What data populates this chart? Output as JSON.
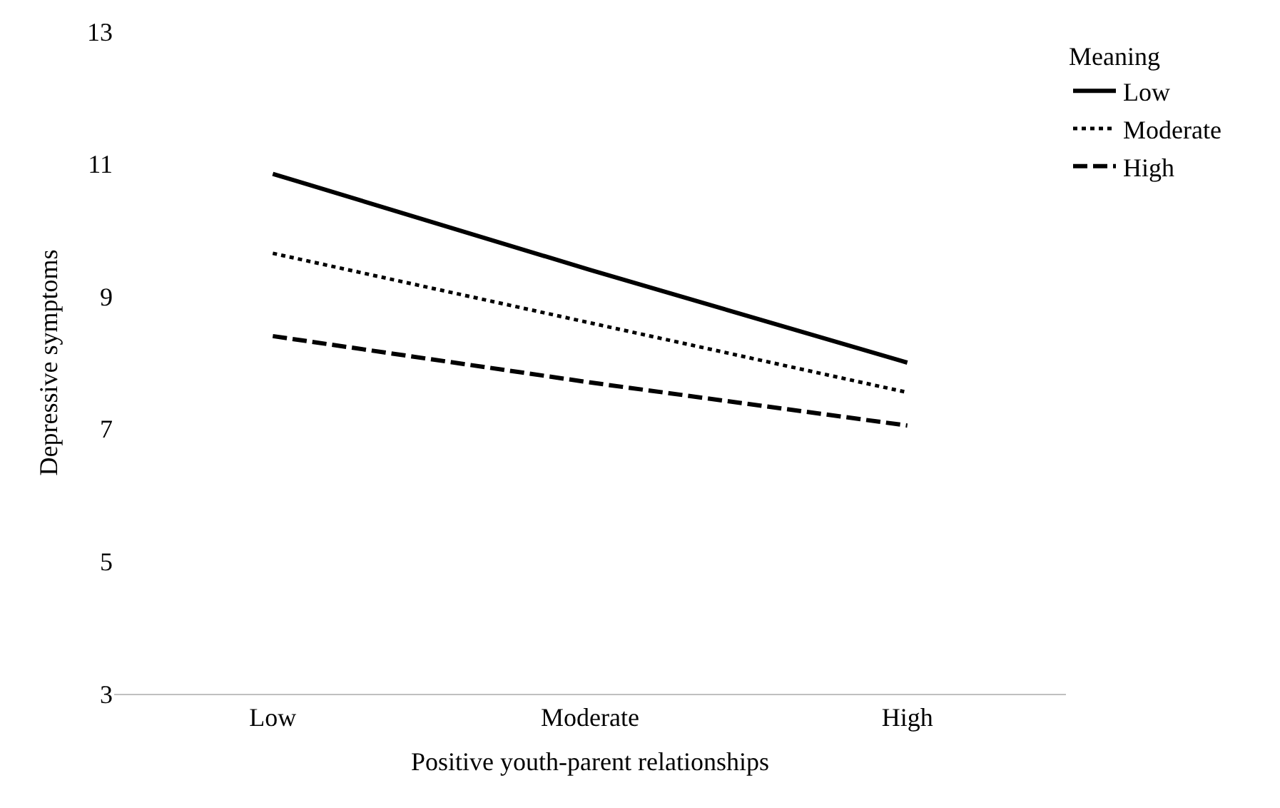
{
  "chart_data": {
    "type": "line",
    "xlabel": "Positive youth-parent relationships",
    "ylabel": "Depressive symptoms",
    "legend_title": "Meaning",
    "categories": [
      "Low",
      "Moderate",
      "High"
    ],
    "series": [
      {
        "name": "Low",
        "color": "#000000",
        "values": [
          10.85,
          9.4,
          8.0
        ],
        "line_style": "solid"
      },
      {
        "name": "Moderate",
        "color": "#000000",
        "values": [
          9.65,
          8.6,
          7.55
        ],
        "line_style": "dotted"
      },
      {
        "name": "High",
        "color": "#000000",
        "values": [
          8.4,
          7.7,
          7.05
        ],
        "line_style": "dashed"
      }
    ],
    "ylim": [
      3,
      13
    ],
    "yticks": [
      3,
      5,
      7,
      9,
      11,
      13
    ],
    "legend": "top right",
    "marker": "none"
  }
}
